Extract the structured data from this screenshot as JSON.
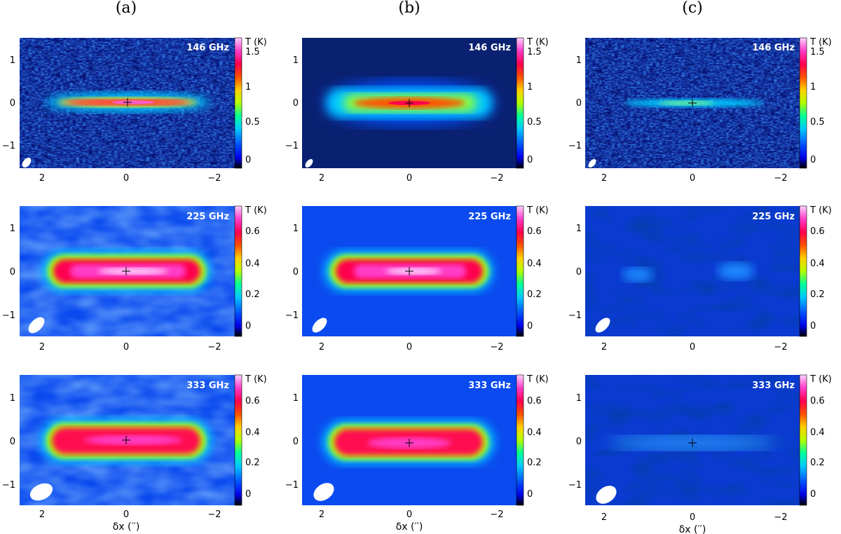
{
  "columns": [
    {
      "label": "(a)"
    },
    {
      "label": "(b)"
    },
    {
      "label": "(c)"
    }
  ],
  "rows": [
    {
      "frequency": "146 GHz",
      "colorbar": {
        "title": "T (K)",
        "ticks": [
          "1.5",
          "1",
          "0.5",
          "0"
        ],
        "range": [
          -0.15,
          1.6
        ]
      }
    },
    {
      "frequency": "225 GHz",
      "colorbar": {
        "title": "T (K)",
        "ticks": [
          "0.6",
          "0.4",
          "0.2",
          "0"
        ],
        "range": [
          -0.08,
          0.72
        ]
      }
    },
    {
      "frequency": "333 GHz",
      "colorbar": {
        "title": "T (K)",
        "ticks": [
          "0.6",
          "0.4",
          "0.2",
          "0"
        ],
        "range": [
          -0.08,
          0.72
        ]
      }
    }
  ],
  "axes": {
    "x_ticks": [
      "2",
      "0",
      "−2"
    ],
    "y_ticks": [
      "1",
      "0",
      "−1"
    ],
    "x_label": "δx (′′)"
  },
  "panel_content": {
    "a": "observed map",
    "b": "model map",
    "c": "residual map"
  },
  "colors": {
    "colormap": [
      "#000000",
      "#0000e8",
      "#0050ff",
      "#00c8ff",
      "#00ff9a",
      "#b4ff00",
      "#ffd000",
      "#ff5000",
      "#ff0050",
      "#ff3cc8",
      "#ffd2ff"
    ],
    "background": "#ffffff",
    "beam": "#ffffff"
  }
}
